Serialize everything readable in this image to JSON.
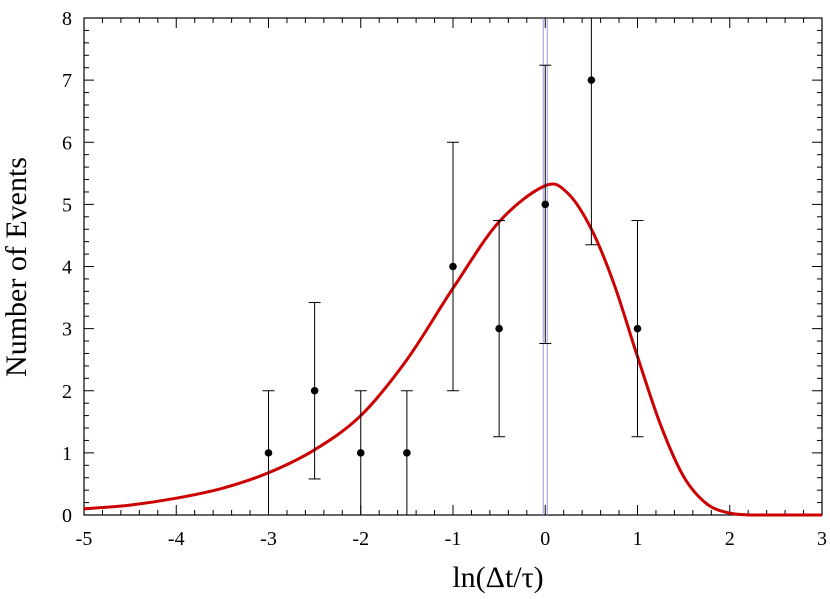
{
  "chart_data": {
    "type": "scatter",
    "title": "",
    "xlabel": "ln(Δt/τ)",
    "ylabel": "Number of Events",
    "xlim": [
      -5,
      3
    ],
    "ylim": [
      0,
      8
    ],
    "xticks": [
      "-5",
      "-4",
      "-3",
      "-2",
      "-1",
      "0",
      "1",
      "2",
      "3"
    ],
    "yticks": [
      "0",
      "1",
      "2",
      "3",
      "4",
      "5",
      "6",
      "7",
      "8"
    ],
    "grid": false,
    "legend": "none",
    "points": [
      {
        "x": -3.0,
        "y": 1,
        "err_low": 1.0,
        "err_high": 1.0
      },
      {
        "x": -2.5,
        "y": 2,
        "err_low": 1.42,
        "err_high": 1.42
      },
      {
        "x": -2.0,
        "y": 1,
        "err_low": 1.0,
        "err_high": 1.0
      },
      {
        "x": -1.5,
        "y": 1,
        "err_low": 1.0,
        "err_high": 1.0
      },
      {
        "x": -1.0,
        "y": 4,
        "err_low": 2.0,
        "err_high": 2.0
      },
      {
        "x": -0.5,
        "y": 3,
        "err_low": 1.74,
        "err_high": 1.74
      },
      {
        "x": 0.0,
        "y": 5,
        "err_low": 2.24,
        "err_high": 2.24
      },
      {
        "x": 0.5,
        "y": 7,
        "err_low": 2.65,
        "err_high": 2.65
      },
      {
        "x": 1.0,
        "y": 3,
        "err_low": 1.74,
        "err_high": 1.74
      }
    ],
    "fit_curve": {
      "type": "line",
      "color": "#cc0000",
      "x": [
        -5.0,
        -4.5,
        -4.0,
        -3.5,
        -3.0,
        -2.5,
        -2.0,
        -1.5,
        -1.0,
        -0.5,
        0.0,
        0.25,
        0.5,
        0.75,
        1.0,
        1.25,
        1.5,
        1.75,
        2.0,
        2.25,
        2.5,
        3.0
      ],
      "y": [
        0.1,
        0.16,
        0.27,
        0.43,
        0.68,
        1.05,
        1.6,
        2.5,
        3.65,
        4.72,
        5.3,
        5.17,
        4.6,
        3.7,
        2.55,
        1.45,
        0.62,
        0.18,
        0.03,
        0.0,
        0.0,
        0.0
      ]
    },
    "vertical_lines": [
      {
        "x": 0.0,
        "color": "#9a9ae6"
      }
    ]
  }
}
